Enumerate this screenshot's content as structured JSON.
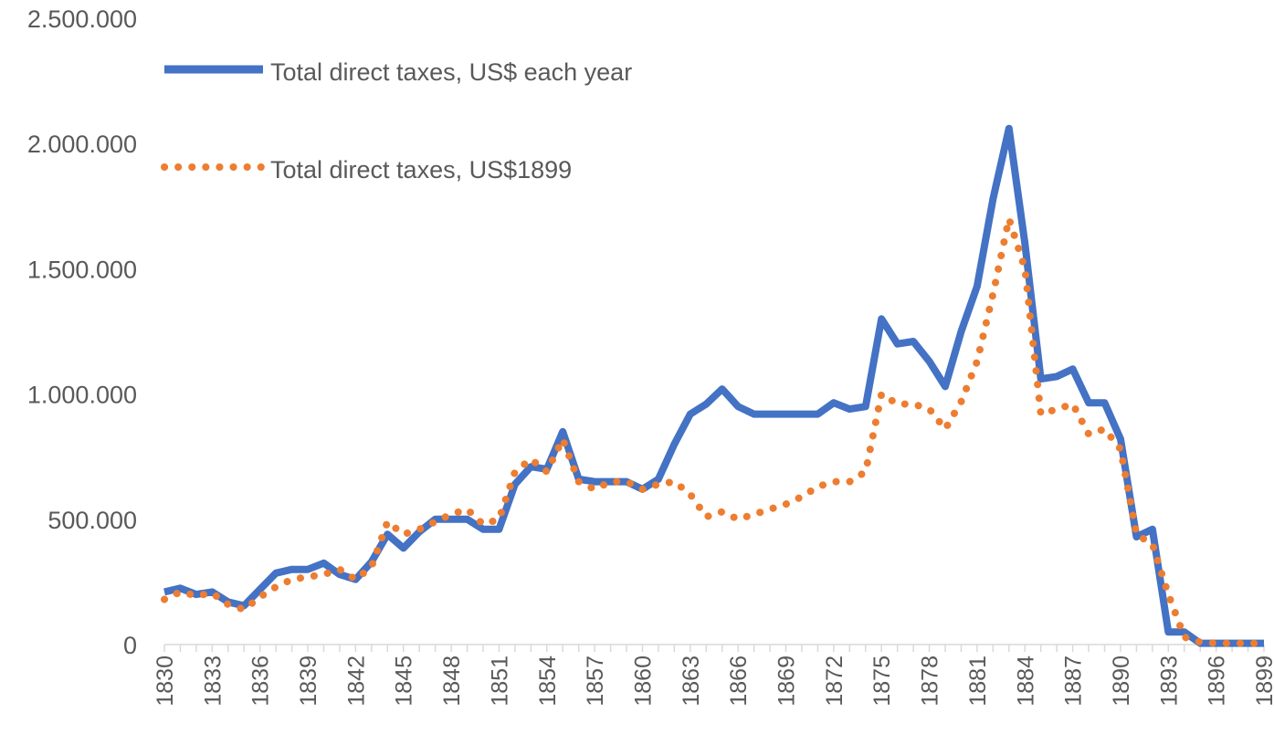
{
  "chart_data": {
    "type": "line",
    "title": "",
    "xlabel": "",
    "ylabel": "",
    "ylim": [
      0,
      2500000
    ],
    "y_ticks": [
      "0",
      "500.000",
      "1.000.000",
      "1.500.000",
      "2.000.000",
      "2.500.000"
    ],
    "x_ticks": [
      "1830",
      "1833",
      "1836",
      "1839",
      "1842",
      "1845",
      "1848",
      "1851",
      "1854",
      "1857",
      "1860",
      "1863",
      "1866",
      "1869",
      "1872",
      "1875",
      "1878",
      "1881",
      "1884",
      "1887",
      "1890",
      "1893",
      "1896",
      "1899"
    ],
    "x": [
      1830,
      1831,
      1832,
      1833,
      1834,
      1835,
      1836,
      1837,
      1838,
      1839,
      1840,
      1841,
      1842,
      1843,
      1844,
      1845,
      1846,
      1847,
      1848,
      1849,
      1850,
      1851,
      1852,
      1853,
      1854,
      1855,
      1856,
      1857,
      1858,
      1859,
      1860,
      1861,
      1862,
      1863,
      1864,
      1865,
      1866,
      1867,
      1868,
      1869,
      1870,
      1871,
      1872,
      1873,
      1874,
      1875,
      1876,
      1877,
      1878,
      1879,
      1880,
      1881,
      1882,
      1883,
      1884,
      1885,
      1886,
      1887,
      1888,
      1889,
      1890,
      1891,
      1892,
      1893,
      1894,
      1895,
      1896,
      1897,
      1898,
      1899
    ],
    "legend_position": "top-left",
    "gridlines": false,
    "series": [
      {
        "name": "Total direct taxes, US$ each year",
        "color": "#4472C4",
        "style": "solid",
        "values": [
          210000,
          225000,
          200000,
          210000,
          170000,
          155000,
          220000,
          285000,
          300000,
          300000,
          325000,
          280000,
          260000,
          330000,
          440000,
          385000,
          450000,
          500000,
          500000,
          500000,
          460000,
          460000,
          640000,
          710000,
          700000,
          850000,
          660000,
          650000,
          650000,
          650000,
          620000,
          660000,
          800000,
          920000,
          960000,
          1020000,
          950000,
          920000,
          920000,
          920000,
          920000,
          920000,
          965000,
          940000,
          950000,
          1300000,
          1200000,
          1210000,
          1130000,
          1030000,
          1250000,
          1430000,
          1780000,
          2060000,
          1600000,
          1060000,
          1070000,
          1100000,
          965000,
          965000,
          820000,
          430000,
          460000,
          50000,
          50000,
          5000,
          5000,
          5000,
          5000,
          5000
        ]
      },
      {
        "name": "Total direct taxes, US$1899",
        "color": "#ED7D31",
        "style": "dotted",
        "values": [
          180000,
          210000,
          195000,
          205000,
          160000,
          140000,
          190000,
          230000,
          260000,
          270000,
          280000,
          300000,
          260000,
          310000,
          490000,
          440000,
          460000,
          490000,
          520000,
          540000,
          480000,
          500000,
          690000,
          740000,
          690000,
          820000,
          650000,
          620000,
          650000,
          650000,
          620000,
          640000,
          650000,
          600000,
          510000,
          530000,
          500000,
          520000,
          540000,
          560000,
          590000,
          630000,
          650000,
          650000,
          690000,
          1000000,
          960000,
          960000,
          940000,
          860000,
          970000,
          1130000,
          1400000,
          1700000,
          1500000,
          920000,
          940000,
          960000,
          840000,
          860000,
          780000,
          440000,
          400000,
          200000,
          30000,
          10000,
          5000,
          5000,
          5000,
          5000
        ]
      }
    ]
  }
}
